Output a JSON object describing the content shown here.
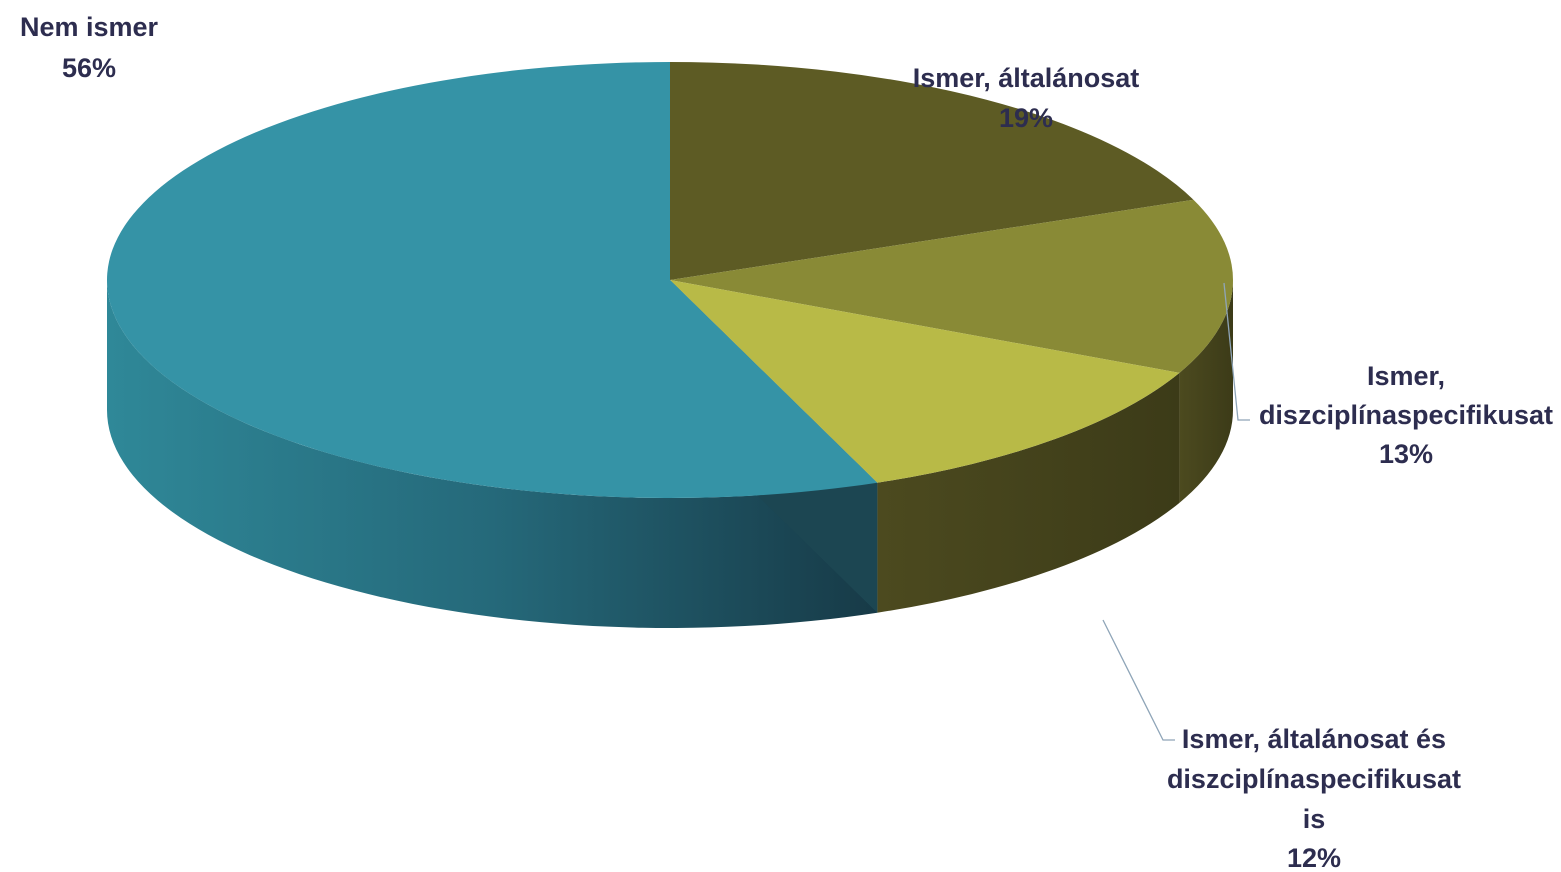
{
  "chart_data": {
    "type": "pie",
    "style": "3d",
    "categories": [
      "Ismer, általánosat",
      "Ismer, diszciplínaspecifikusat",
      "Ismer, általánosat és diszciplínaspecifikusat is",
      "Nem ismer"
    ],
    "values": [
      19,
      13,
      12,
      56
    ],
    "unit": "%",
    "colors": [
      "#5d5b24",
      "#898a36",
      "#b8ba47",
      "#3593a6"
    ],
    "side_colors": [
      "#4a4a1f",
      "#4a4a1f",
      "#4a4a1f",
      "#2d7f8f"
    ],
    "labels": [
      {
        "lines": [
          "Ismer, általánosat"
        ],
        "value": "19%"
      },
      {
        "lines": [
          "Ismer,",
          "diszciplínaspecifikusat"
        ],
        "value": "13%"
      },
      {
        "lines": [
          "Ismer, általánosat és",
          "diszciplínaspecifikusat",
          "is"
        ],
        "value": "12%"
      },
      {
        "lines": [
          "Nem ismer"
        ],
        "value": "56%"
      }
    ],
    "title": "",
    "legend": "none",
    "data_labels": "outside"
  }
}
